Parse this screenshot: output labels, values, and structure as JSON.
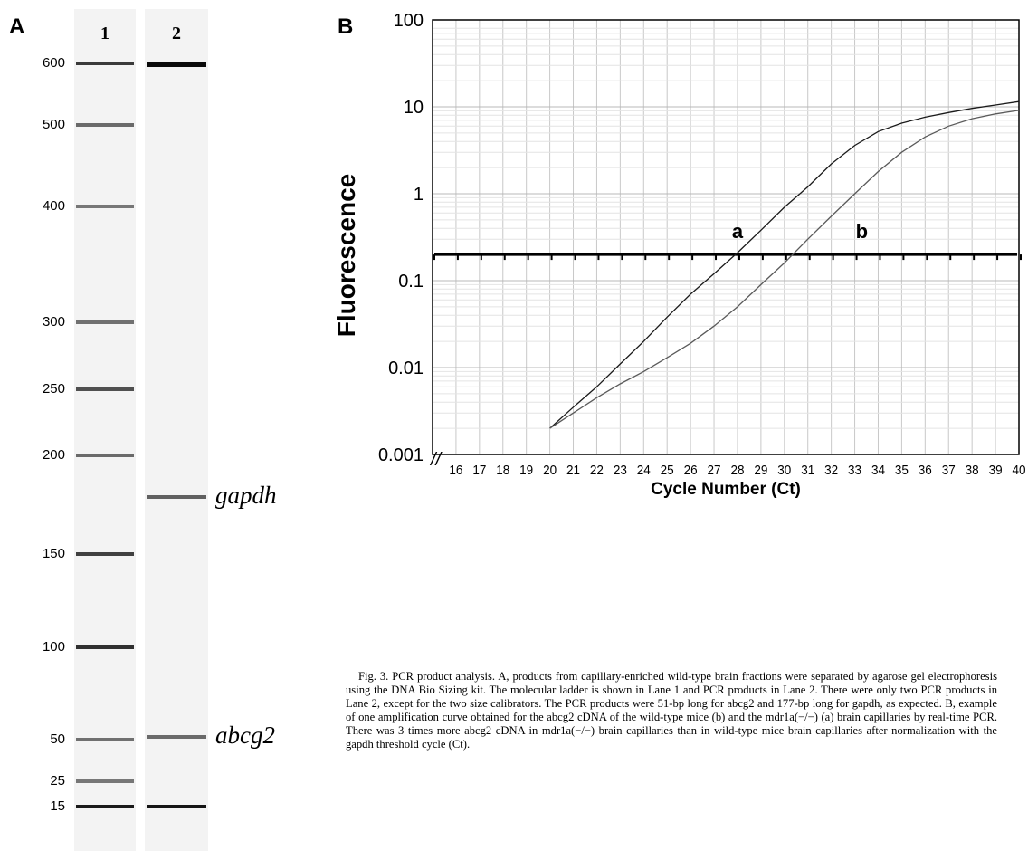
{
  "panel_a": {
    "letter": "A",
    "lanes": [
      "1",
      "2"
    ],
    "ladder": [
      {
        "label": "600",
        "value": 600
      },
      {
        "label": "500",
        "value": 500
      },
      {
        "label": "400",
        "value": 400
      },
      {
        "label": "300",
        "value": 300
      },
      {
        "label": "250",
        "value": 250
      },
      {
        "label": "200",
        "value": 200
      },
      {
        "label": "150",
        "value": 150
      },
      {
        "label": "100",
        "value": 100
      },
      {
        "label": "50",
        "value": 50
      },
      {
        "label": "25",
        "value": 25
      },
      {
        "label": "15",
        "value": 15
      }
    ],
    "lane2_bands": [
      {
        "name": "",
        "value": 600
      },
      {
        "name": "gapdh",
        "value": 177
      },
      {
        "name": "abcg2",
        "value": 51
      },
      {
        "name": "",
        "value": 15
      }
    ]
  },
  "panel_b": {
    "letter": "B",
    "chart_data": {
      "type": "line",
      "xlabel": "Cycle Number (Ct)",
      "ylabel": "Fluorescence",
      "yscale": "log",
      "ylim": [
        0.001,
        100
      ],
      "xlim": [
        15,
        40
      ],
      "xticks": [
        "16",
        "17",
        "18",
        "19",
        "20",
        "21",
        "22",
        "23",
        "24",
        "25",
        "26",
        "27",
        "28",
        "29",
        "30",
        "31",
        "32",
        "33",
        "34",
        "35",
        "36",
        "37",
        "38",
        "39",
        "40"
      ],
      "yticks": [
        "0.001",
        "0.01",
        "0.1",
        "1",
        "10",
        "100"
      ],
      "grid": true,
      "threshold": 0.2,
      "series": [
        {
          "name": "a",
          "x": [
            20,
            21,
            22,
            23,
            24,
            25,
            26,
            27,
            28,
            29,
            30,
            31,
            32,
            33,
            34,
            35,
            36,
            37,
            38,
            39,
            40
          ],
          "y": [
            0.002,
            0.0035,
            0.006,
            0.011,
            0.02,
            0.038,
            0.07,
            0.12,
            0.21,
            0.38,
            0.7,
            1.2,
            2.2,
            3.6,
            5.2,
            6.5,
            7.6,
            8.6,
            9.6,
            10.5,
            11.5
          ]
        },
        {
          "name": "b",
          "x": [
            20,
            21,
            22,
            23,
            24,
            25,
            26,
            27,
            28,
            29,
            30,
            31,
            32,
            33,
            34,
            35,
            36,
            37,
            38,
            39,
            40
          ],
          "y": [
            0.002,
            0.003,
            0.0045,
            0.0065,
            0.009,
            0.013,
            0.019,
            0.03,
            0.05,
            0.09,
            0.16,
            0.3,
            0.55,
            1.0,
            1.8,
            3.0,
            4.5,
            6.0,
            7.3,
            8.3,
            9.1
          ]
        }
      ]
    }
  },
  "caption": {
    "paragraph": "Fig. 3. PCR product analysis. A, products from capillary-enriched wild-type brain fractions were separated by agarose gel electrophoresis using the DNA Bio Sizing kit. The molecular ladder is shown in Lane 1 and PCR products in Lane 2. There were only two PCR products in Lane 2, except for the two size calibrators. The PCR products were 51-bp long for abcg2 and 177-bp long for gapdh, as expected. B, example of one amplification curve obtained for the abcg2 cDNA of the wild-type mice (b) and the mdr1a(−/−) (a) brain capillaries by real-time PCR. There was 3 times more abcg2 cDNA in mdr1a(−/−) brain capillaries than in wild-type mice brain capillaries after normalization with the gapdh threshold cycle (Ct)."
  }
}
